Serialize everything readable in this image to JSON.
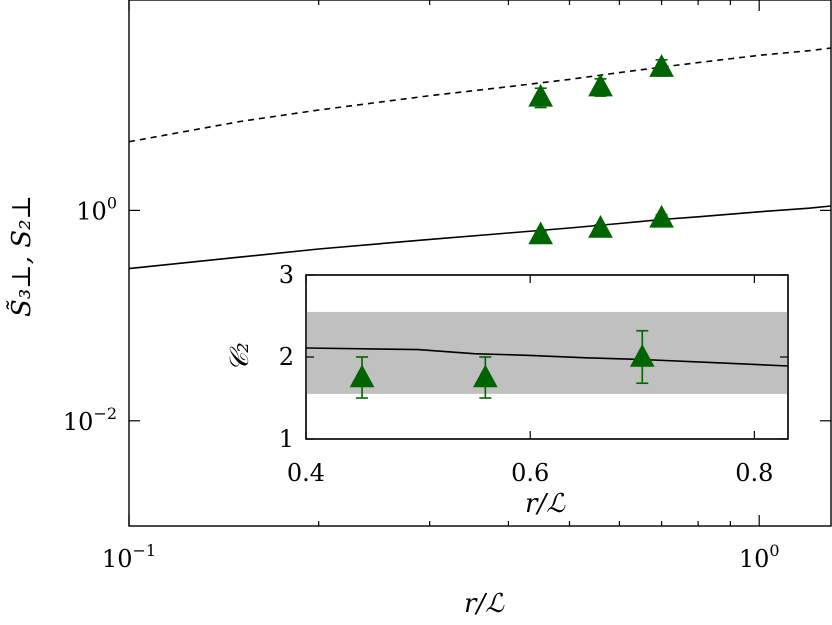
{
  "chart_data": [
    {
      "type": "line",
      "xscale": "log",
      "yscale": "log",
      "xlim": [
        0.1,
        1.3
      ],
      "ylim": [
        0.001,
        100
      ],
      "xlabel": "r/ℒ",
      "ylabel": "S̃₃⊥, S₂⊥",
      "xticks": [
        {
          "value": 0.1,
          "mantissa": "10",
          "exponent": "−1"
        },
        {
          "value": 1.0,
          "mantissa": "10",
          "exponent": "0"
        }
      ],
      "yticks": [
        {
          "value": 0.01,
          "mantissa": "10",
          "exponent": "−2"
        },
        {
          "value": 1.0,
          "mantissa": "10",
          "exponent": "0"
        }
      ],
      "series": [
        {
          "style": "dashed",
          "color": "#000000",
          "x": [
            0.1,
            0.15,
            0.2,
            0.3,
            0.4,
            0.5,
            0.6,
            0.7,
            0.8,
            1.0,
            1.2,
            1.3
          ],
          "y": [
            4.5,
            7.0,
            9.0,
            12.3,
            15.0,
            17.6,
            20.4,
            23.0,
            25.4,
            29.8,
            33.0,
            35.0
          ]
        },
        {
          "style": "solid",
          "color": "#000000",
          "x": [
            0.1,
            0.15,
            0.2,
            0.3,
            0.4,
            0.5,
            0.6,
            0.7,
            0.8,
            1.0,
            1.2,
            1.3
          ],
          "y": [
            0.28,
            0.36,
            0.43,
            0.53,
            0.61,
            0.68,
            0.75,
            0.82,
            0.87,
            0.97,
            1.05,
            1.1
          ]
        },
        {
          "style": "markers",
          "marker": "triangle",
          "color": "#006400",
          "x": [
            0.45,
            0.56,
            0.7
          ],
          "y": [
            12.0,
            15.0,
            23.0
          ],
          "err": [
            2.5,
            2.8,
            4.0
          ]
        },
        {
          "style": "markers",
          "marker": "triangle",
          "color": "#006400",
          "x": [
            0.45,
            0.56,
            0.7
          ],
          "y": [
            0.59,
            0.68,
            0.85
          ],
          "err": [
            0.04,
            0.05,
            0.06
          ]
        }
      ]
    },
    {
      "type": "line",
      "xlim": [
        0.4,
        0.83
      ],
      "ylim": [
        1,
        3
      ],
      "xlabel": "r/ℒ",
      "ylabel": "𝒞₂",
      "xticks": [
        "0.4",
        "0.6",
        "0.8"
      ],
      "yticks": [
        "1",
        "2",
        "3"
      ],
      "band": {
        "ymin": 1.55,
        "ymax": 2.55,
        "color": "#c0c0c0"
      },
      "series": [
        {
          "style": "solid",
          "color": "#000000",
          "x": [
            0.4,
            0.5,
            0.55,
            0.6,
            0.65,
            0.7,
            0.75,
            0.8,
            0.83
          ],
          "y": [
            2.11,
            2.09,
            2.04,
            2.02,
            1.99,
            1.97,
            1.94,
            1.91,
            1.89
          ]
        },
        {
          "style": "markers",
          "marker": "triangle",
          "color": "#006400",
          "x": [
            0.45,
            0.56,
            0.7
          ],
          "y": [
            1.75,
            1.75,
            2.0
          ],
          "err": [
            0.25,
            0.25,
            0.32
          ]
        }
      ]
    }
  ]
}
